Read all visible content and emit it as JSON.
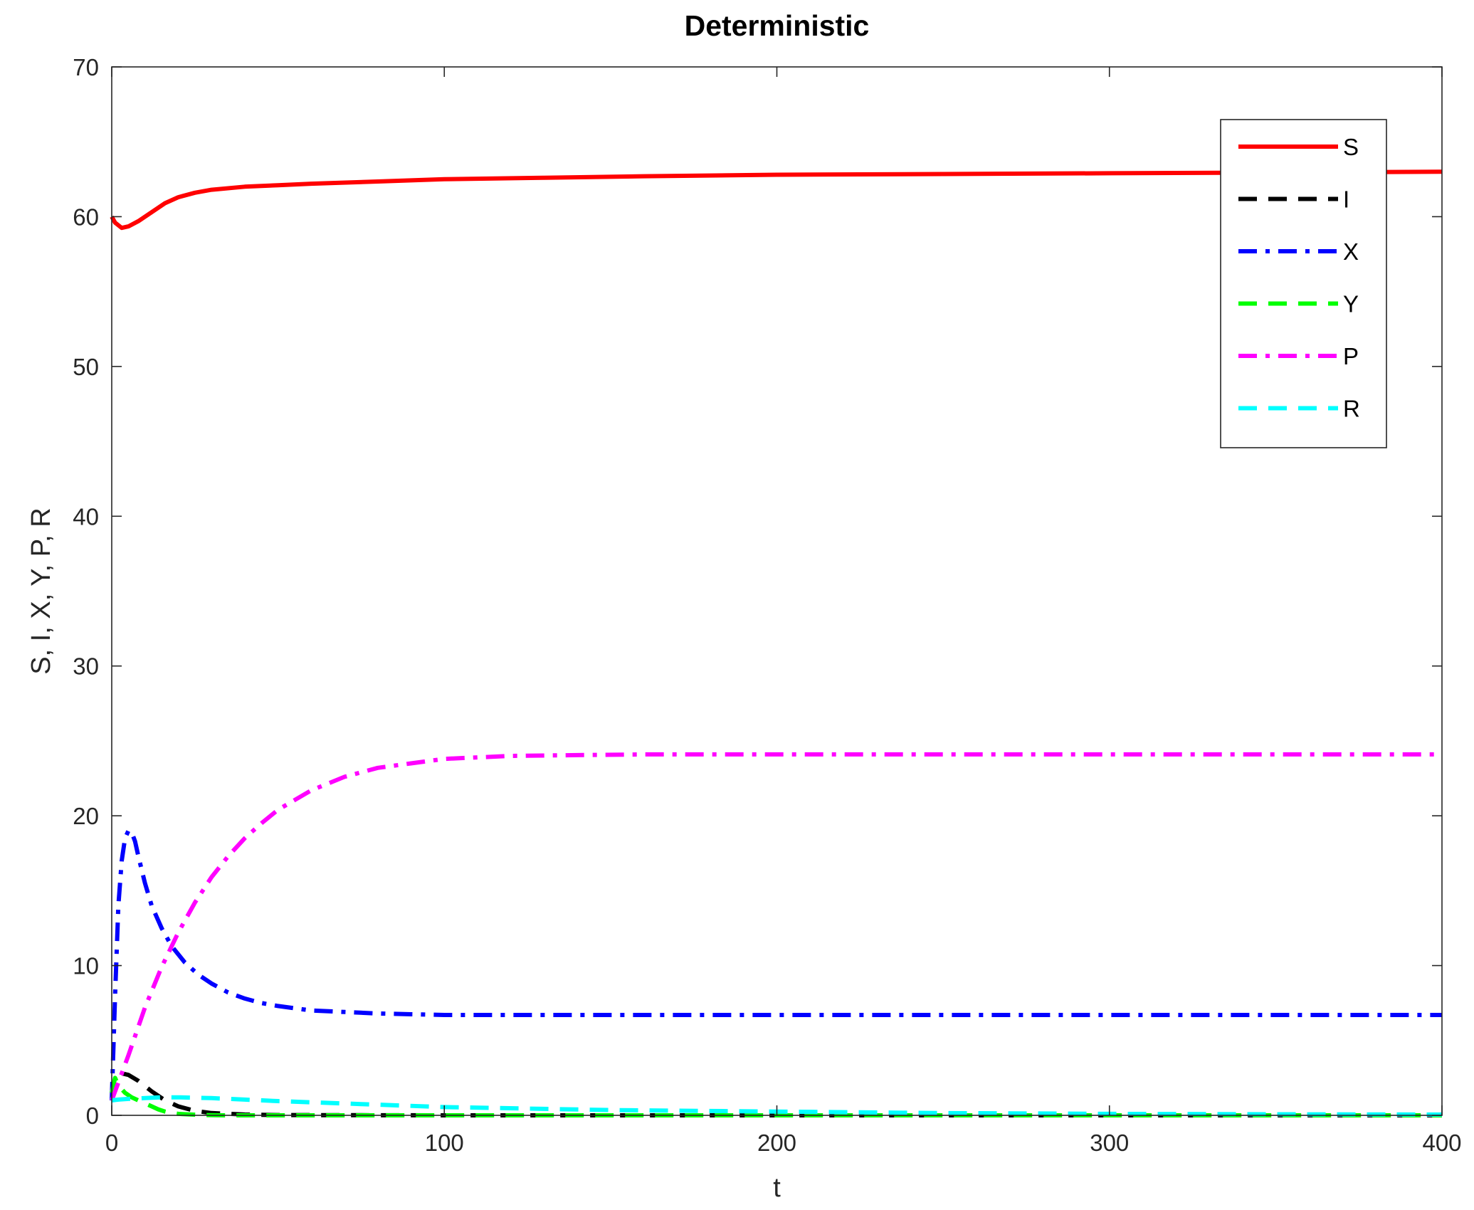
{
  "chart_data": {
    "type": "line",
    "title": "Deterministic",
    "xlabel": "t",
    "ylabel": "S, I, X, Y, P, R",
    "xlim": [
      0,
      400
    ],
    "ylim": [
      0,
      70
    ],
    "xticks": [
      0,
      100,
      200,
      300,
      400
    ],
    "yticks": [
      0,
      10,
      20,
      30,
      40,
      50,
      60,
      70
    ],
    "xtick_labels": [
      "0",
      "100",
      "200",
      "300",
      "400"
    ],
    "ytick_labels": [
      "0",
      "10",
      "20",
      "30",
      "40",
      "50",
      "60",
      "70"
    ],
    "grid": false,
    "legend_position": "top-right",
    "series": [
      {
        "name": "S",
        "color": "#ff0000",
        "style": "solid",
        "x": [
          0,
          1,
          3,
          5,
          8,
          12,
          16,
          20,
          25,
          30,
          40,
          50,
          60,
          80,
          100,
          130,
          160,
          200,
          250,
          300,
          350,
          400
        ],
        "y": [
          60,
          59.6,
          59.25,
          59.35,
          59.7,
          60.3,
          60.9,
          61.3,
          61.6,
          61.8,
          62.0,
          62.1,
          62.2,
          62.35,
          62.5,
          62.6,
          62.7,
          62.8,
          62.85,
          62.9,
          62.95,
          63.0
        ]
      },
      {
        "name": "I",
        "color": "#000000",
        "style": "dashed",
        "x": [
          0,
          1,
          3,
          5,
          8,
          12,
          16,
          20,
          25,
          30,
          40,
          50,
          100,
          200,
          300,
          400
        ],
        "y": [
          1,
          2.2,
          2.8,
          2.7,
          2.3,
          1.6,
          1.0,
          0.6,
          0.3,
          0.15,
          0.05,
          0.02,
          0,
          0,
          0,
          0
        ]
      },
      {
        "name": "X",
        "color": "#0000ff",
        "style": "dashdot",
        "x": [
          0,
          1,
          2,
          3,
          4,
          5,
          6,
          7,
          8,
          10,
          12,
          15,
          18,
          22,
          26,
          30,
          35,
          40,
          45,
          50,
          60,
          70,
          80,
          90,
          100,
          120,
          150,
          200,
          300,
          400
        ],
        "y": [
          1,
          8,
          14,
          17,
          18.5,
          19,
          18.9,
          18.3,
          17.3,
          15.5,
          14.0,
          12.5,
          11.3,
          10.2,
          9.4,
          8.8,
          8.2,
          7.8,
          7.5,
          7.3,
          7.0,
          6.9,
          6.8,
          6.75,
          6.7,
          6.7,
          6.7,
          6.7,
          6.7,
          6.7
        ]
      },
      {
        "name": "Y",
        "color": "#00ff00",
        "style": "dashed",
        "x": [
          0,
          1,
          2,
          4,
          6,
          8,
          10,
          12,
          14,
          16,
          18,
          20,
          24,
          28,
          35,
          50,
          100,
          200,
          300,
          400
        ],
        "y": [
          1.5,
          2.5,
          2.0,
          1.5,
          1.2,
          1.0,
          0.8,
          0.6,
          0.4,
          0.25,
          0.15,
          0.1,
          0.05,
          0.02,
          0,
          0,
          0,
          0,
          0,
          0
        ]
      },
      {
        "name": "P",
        "color": "#ff00ff",
        "style": "dashdot",
        "x": [
          0,
          5,
          10,
          15,
          20,
          25,
          30,
          35,
          40,
          45,
          50,
          60,
          70,
          80,
          90,
          100,
          110,
          120,
          140,
          160,
          200,
          300,
          400
        ],
        "y": [
          1,
          4.0,
          7.2,
          9.9,
          12.2,
          14.2,
          15.9,
          17.3,
          18.5,
          19.5,
          20.4,
          21.7,
          22.6,
          23.2,
          23.5,
          23.8,
          23.9,
          24.0,
          24.05,
          24.1,
          24.1,
          24.1,
          24.1
        ]
      },
      {
        "name": "R",
        "color": "#00ffff",
        "style": "dashed",
        "x": [
          0,
          2,
          5,
          10,
          15,
          20,
          30,
          40,
          50,
          75,
          100,
          150,
          200,
          250,
          300,
          350,
          400
        ],
        "y": [
          1.0,
          1.05,
          1.1,
          1.15,
          1.2,
          1.2,
          1.15,
          1.05,
          0.95,
          0.75,
          0.55,
          0.35,
          0.25,
          0.15,
          0.1,
          0.07,
          0.05
        ]
      }
    ]
  }
}
